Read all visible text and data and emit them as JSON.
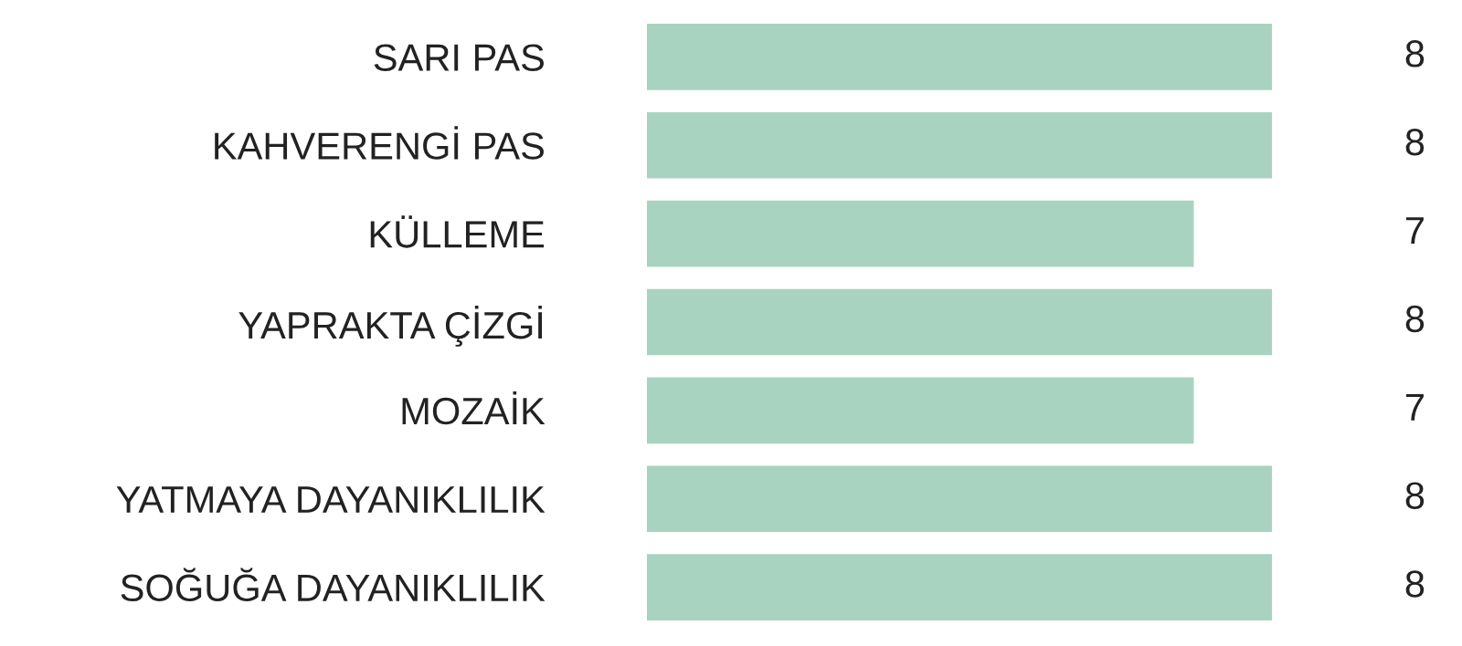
{
  "chart_data": {
    "type": "bar",
    "orientation": "horizontal",
    "categories": [
      "SARI PAS",
      "KAHVERENGİ PAS",
      "KÜLLEME",
      "YAPRAKTA ÇİZGİ",
      "MOZAİK",
      "YATMAYA DAYANIKLILIK",
      "SOĞUĞA DAYANIKLILIK"
    ],
    "values": [
      8,
      8,
      7,
      8,
      7,
      8,
      8
    ],
    "color": "#a9d3c1",
    "data_labels": true,
    "grid": false,
    "legend": false
  }
}
